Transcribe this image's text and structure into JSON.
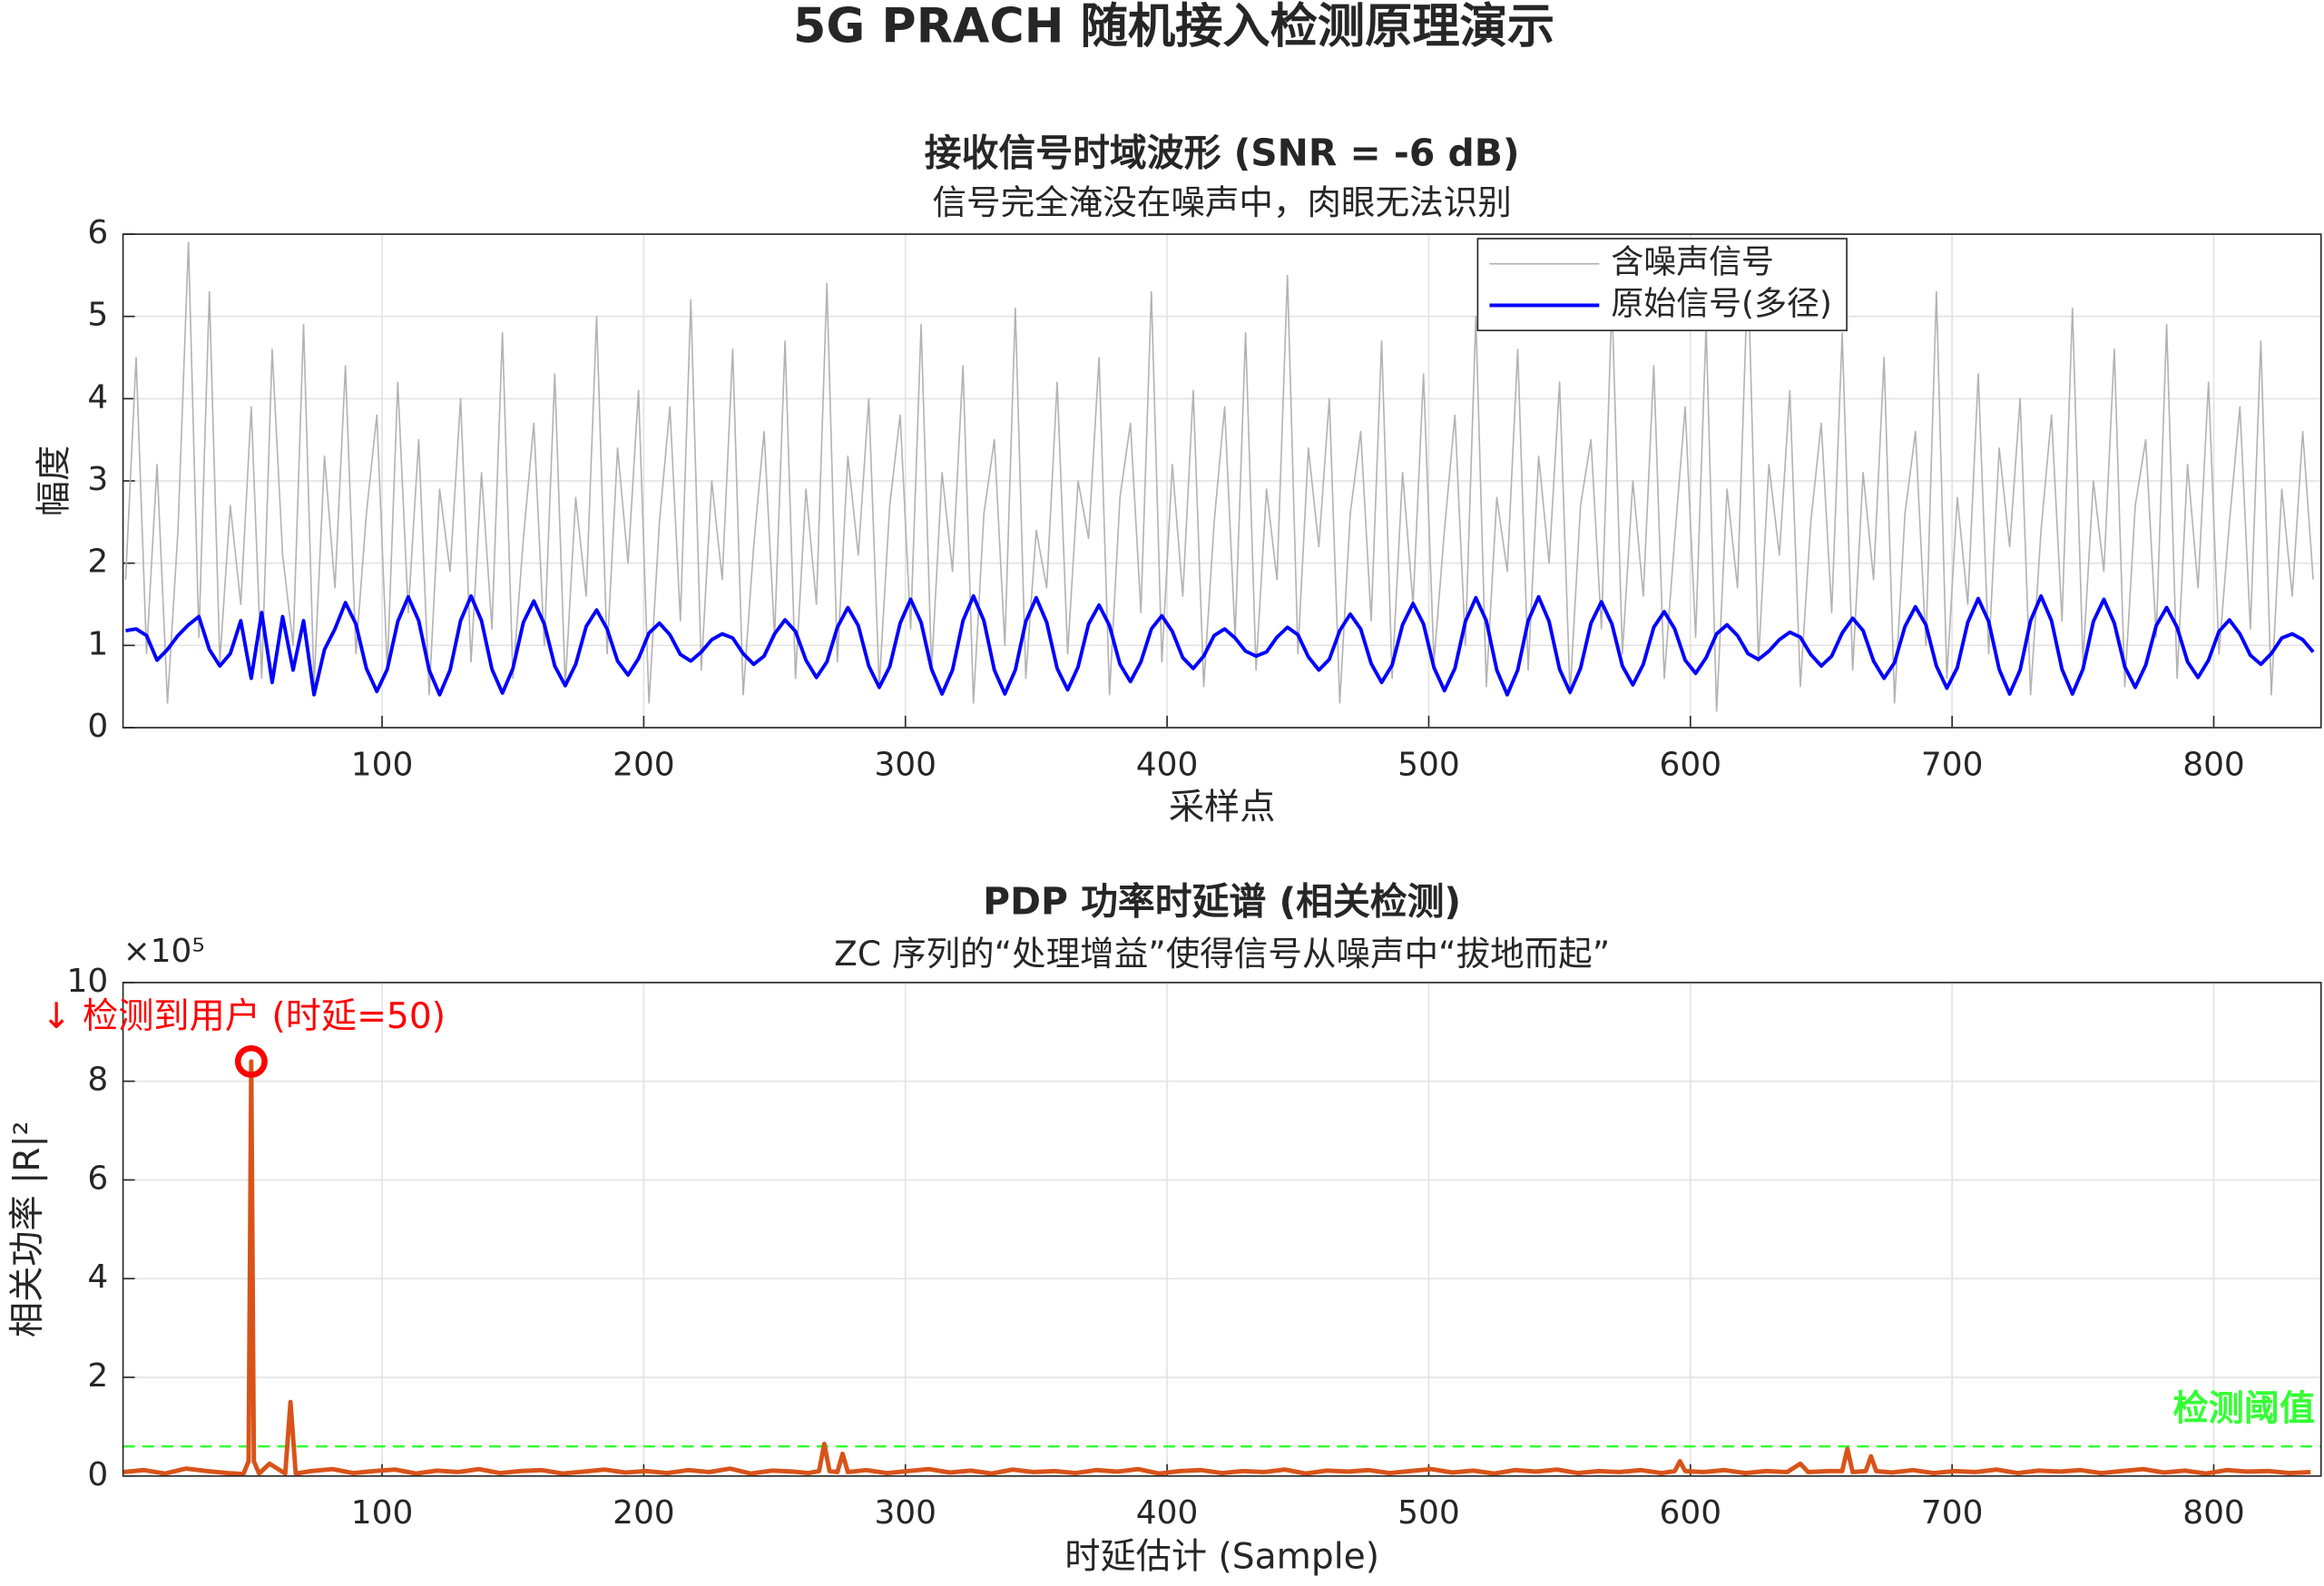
{
  "title": "5G PRACH 随机接入检测原理演示",
  "chart_data": [
    {
      "type": "line",
      "title": "接收信号时域波形 (SNR = -6 dB)",
      "subtitle": "信号完全淹没在噪声中，肉眼无法识别",
      "xlabel": "采样点",
      "ylabel": "幅度",
      "x": [
        2,
        6,
        10,
        14,
        18,
        22,
        26,
        30,
        34,
        38,
        42,
        46,
        50,
        54,
        58,
        62,
        66,
        70,
        74,
        78,
        82,
        86,
        90,
        94,
        98,
        102,
        106,
        110,
        114,
        118,
        122,
        126,
        130,
        134,
        138,
        142,
        146,
        150,
        154,
        158,
        162,
        166,
        170,
        174,
        178,
        182,
        186,
        190,
        194,
        198,
        202,
        206,
        210,
        214,
        218,
        222,
        226,
        230,
        234,
        238,
        242,
        246,
        250,
        254,
        258,
        262,
        266,
        270,
        274,
        278,
        282,
        286,
        290,
        294,
        298,
        302,
        306,
        310,
        314,
        318,
        322,
        326,
        330,
        334,
        338,
        342,
        346,
        350,
        354,
        358,
        362,
        366,
        370,
        374,
        378,
        382,
        386,
        390,
        394,
        398,
        402,
        406,
        410,
        414,
        418,
        422,
        426,
        430,
        434,
        438,
        442,
        446,
        450,
        454,
        458,
        462,
        466,
        470,
        474,
        478,
        482,
        486,
        490,
        494,
        498,
        502,
        506,
        510,
        514,
        518,
        522,
        526,
        530,
        534,
        538,
        542,
        546,
        550,
        554,
        558,
        562,
        566,
        570,
        574,
        578,
        582,
        586,
        590,
        594,
        598,
        602,
        606,
        610,
        614,
        618,
        622,
        626,
        630,
        634,
        638,
        642,
        646,
        650,
        654,
        658,
        662,
        666,
        670,
        674,
        678,
        682,
        686,
        690,
        694,
        698,
        702,
        706,
        710,
        714,
        718,
        722,
        726,
        730,
        734,
        738,
        742,
        746,
        750,
        754,
        758,
        762,
        766,
        770,
        774,
        778,
        782,
        786,
        790,
        794,
        798,
        802,
        806,
        810,
        814,
        818,
        822,
        826,
        830,
        834,
        838
      ],
      "series": [
        {
          "name": "含噪声信号",
          "color": "#b3b3b3",
          "width": 1,
          "values": [
            1.8,
            4.5,
            0.9,
            3.2,
            0.3,
            2.4,
            5.9,
            1.1,
            5.3,
            0.8,
            2.7,
            1.5,
            3.9,
            0.6,
            4.6,
            2.1,
            1.0,
            4.9,
            0.5,
            3.3,
            1.7,
            4.4,
            0.9,
            2.6,
            3.8,
            0.7,
            4.2,
            1.4,
            3.5,
            0.4,
            2.9,
            1.9,
            4.0,
            0.8,
            3.1,
            1.2,
            4.8,
            0.6,
            2.3,
            3.7,
            1.0,
            4.3,
            0.5,
            2.8,
            1.6,
            5.0,
            0.9,
            3.4,
            2.0,
            4.1,
            0.3,
            2.5,
            3.9,
            1.3,
            5.2,
            0.7,
            3.0,
            1.8,
            4.6,
            0.4,
            2.2,
            3.6,
            1.1,
            4.7,
            0.6,
            2.9,
            1.5,
            5.4,
            0.8,
            3.3,
            2.1,
            4.0,
            0.5,
            2.7,
            3.8,
            1.2,
            4.9,
            0.7,
            3.1,
            1.9,
            4.4,
            0.3,
            2.6,
            3.5,
            1.0,
            5.1,
            0.6,
            2.4,
            1.7,
            4.2,
            0.9,
            3.0,
            2.3,
            4.5,
            0.4,
            2.8,
            3.7,
            1.4,
            5.3,
            0.8,
            3.2,
            1.6,
            4.1,
            0.5,
            2.5,
            3.9,
            1.1,
            4.8,
            0.7,
            2.9,
            1.8,
            5.5,
            0.9,
            3.4,
            2.2,
            4.0,
            0.3,
            2.6,
            3.6,
            1.3,
            4.7,
            0.6,
            3.1,
            1.5,
            4.3,
            0.8,
            2.4,
            3.8,
            1.0,
            5.0,
            0.5,
            2.8,
            1.9,
            4.6,
            0.7,
            3.3,
            2.0,
            4.2,
            0.4,
            2.7,
            3.5,
            1.2,
            5.2,
            0.9,
            3.0,
            1.6,
            4.4,
            0.6,
            2.3,
            3.9,
            1.1,
            4.9,
            0.2,
            2.9,
            1.7,
            5.6,
            0.8,
            3.2,
            2.1,
            4.1,
            0.5,
            2.5,
            3.7,
            1.4,
            4.8,
            0.7,
            3.1,
            1.8,
            4.5,
            0.3,
            2.6,
            3.6,
            1.0,
            5.3,
            0.6,
            2.8,
            1.5,
            4.3,
            0.9,
            3.4,
            2.2,
            4.0,
            0.4,
            2.4,
            3.8,
            1.3,
            5.1,
            0.8,
            3.0,
            1.9,
            4.6,
            0.5,
            2.7,
            3.5,
            1.1,
            4.9,
            0.6,
            3.2,
            1.7,
            4.2,
            0.9,
            2.5,
            3.9,
            1.2,
            4.7,
            0.4,
            2.9,
            1.6,
            3.6,
            1.8
          ]
        },
        {
          "name": "原始信号(多径)",
          "color": "#0000ff",
          "width": 2.4,
          "values": [
            1.18,
            1.2,
            1.12,
            0.82,
            0.95,
            1.12,
            1.25,
            1.35,
            0.95,
            0.75,
            0.9,
            1.3,
            0.6,
            1.4,
            0.55,
            1.35,
            0.7,
            1.3,
            0.4,
            0.95,
            1.2,
            1.52,
            1.26,
            0.72,
            0.44,
            0.71,
            1.29,
            1.59,
            1.3,
            0.7,
            0.4,
            0.7,
            1.3,
            1.6,
            1.3,
            0.71,
            0.42,
            0.72,
            1.28,
            1.54,
            1.26,
            0.75,
            0.51,
            0.77,
            1.23,
            1.43,
            1.2,
            0.81,
            0.64,
            0.84,
            1.15,
            1.27,
            1.13,
            0.89,
            0.81,
            0.92,
            1.07,
            1.14,
            1.09,
            0.9,
            0.77,
            0.87,
            1.14,
            1.31,
            1.17,
            0.82,
            0.61,
            0.8,
            1.22,
            1.46,
            1.24,
            0.75,
            0.49,
            0.74,
            1.27,
            1.56,
            1.28,
            0.71,
            0.41,
            0.7,
            1.3,
            1.6,
            1.3,
            0.7,
            0.41,
            0.7,
            1.29,
            1.58,
            1.28,
            0.72,
            0.46,
            0.74,
            1.26,
            1.49,
            1.24,
            0.77,
            0.56,
            0.8,
            1.2,
            1.36,
            1.17,
            0.85,
            0.72,
            0.87,
            1.12,
            1.2,
            1.09,
            0.93,
            0.87,
            0.92,
            1.1,
            1.22,
            1.13,
            0.86,
            0.7,
            0.83,
            1.18,
            1.38,
            1.2,
            0.78,
            0.55,
            0.76,
            1.25,
            1.51,
            1.26,
            0.73,
            0.45,
            0.72,
            1.29,
            1.58,
            1.3,
            0.7,
            0.4,
            0.7,
            1.3,
            1.59,
            1.29,
            0.71,
            0.43,
            0.72,
            1.27,
            1.53,
            1.26,
            0.75,
            0.52,
            0.77,
            1.22,
            1.41,
            1.2,
            0.82,
            0.66,
            0.85,
            1.14,
            1.25,
            1.12,
            0.9,
            0.83,
            0.93,
            1.07,
            1.16,
            1.1,
            0.89,
            0.75,
            0.87,
            1.15,
            1.33,
            1.18,
            0.81,
            0.6,
            0.79,
            1.23,
            1.47,
            1.25,
            0.75,
            0.48,
            0.73,
            1.28,
            1.57,
            1.29,
            0.71,
            0.41,
            0.7,
            1.3,
            1.6,
            1.3,
            0.71,
            0.41,
            0.71,
            1.29,
            1.56,
            1.27,
            0.74,
            0.49,
            0.76,
            1.24,
            1.46,
            1.22,
            0.8,
            0.61,
            0.82,
            1.17,
            1.31,
            1.14,
            0.88,
            0.77,
            0.9,
            1.09,
            1.14,
            1.07,
            0.92
          ]
        }
      ],
      "xlim": [
        1,
        841
      ],
      "ylim": [
        0,
        6
      ],
      "xticks": [
        100,
        200,
        300,
        400,
        500,
        600,
        700,
        800
      ],
      "yticks": [
        0,
        1,
        2,
        3,
        4,
        5,
        6
      ],
      "grid": true,
      "legend": "upper right"
    },
    {
      "type": "line",
      "title": "PDP 功率时延谱 (相关检测)",
      "subtitle": "ZC 序列的“处理增益”使得信号从噪声中“拔地而起”",
      "xlabel": "时延估计 (Sample)",
      "ylabel": "相关功率  |R|²",
      "ylabel_exponent": "×10⁵",
      "x": [
        1,
        9,
        17,
        25,
        33,
        41,
        47,
        49,
        50,
        51,
        53,
        57,
        63,
        65,
        67,
        73,
        81,
        89,
        97,
        105,
        113,
        121,
        129,
        137,
        145,
        153,
        161,
        169,
        177,
        185,
        193,
        201,
        209,
        217,
        225,
        233,
        241,
        249,
        257,
        263,
        267,
        269,
        271,
        274,
        276,
        278,
        285,
        293,
        301,
        309,
        317,
        325,
        333,
        341,
        349,
        357,
        365,
        373,
        381,
        389,
        397,
        405,
        413,
        421,
        429,
        437,
        445,
        453,
        461,
        469,
        477,
        485,
        493,
        501,
        509,
        517,
        525,
        533,
        541,
        549,
        557,
        565,
        573,
        581,
        589,
        594,
        596,
        598,
        605,
        613,
        621,
        629,
        637,
        642,
        645,
        653,
        658,
        660,
        662,
        667,
        669,
        671,
        677,
        685,
        693,
        701,
        709,
        717,
        725,
        733,
        741,
        749,
        757,
        765,
        773,
        781,
        789,
        797,
        805,
        813,
        821,
        829,
        837
      ],
      "series": [
        {
          "color": "#d95319",
          "width": 3,
          "values": [
            0.08,
            0.12,
            0.05,
            0.15,
            0.1,
            0.06,
            0.04,
            0.3,
            8.4,
            0.3,
            0.05,
            0.25,
            0.05,
            1.5,
            0.05,
            0.1,
            0.14,
            0.06,
            0.1,
            0.13,
            0.05,
            0.11,
            0.08,
            0.14,
            0.06,
            0.1,
            0.12,
            0.05,
            0.09,
            0.13,
            0.07,
            0.1,
            0.06,
            0.12,
            0.08,
            0.15,
            0.05,
            0.11,
            0.09,
            0.06,
            0.1,
            0.65,
            0.1,
            0.08,
            0.45,
            0.08,
            0.12,
            0.06,
            0.1,
            0.14,
            0.07,
            0.11,
            0.05,
            0.13,
            0.08,
            0.1,
            0.06,
            0.12,
            0.09,
            0.14,
            0.05,
            0.1,
            0.12,
            0.06,
            0.1,
            0.08,
            0.13,
            0.05,
            0.11,
            0.09,
            0.12,
            0.06,
            0.1,
            0.14,
            0.07,
            0.11,
            0.05,
            0.12,
            0.09,
            0.13,
            0.06,
            0.1,
            0.08,
            0.12,
            0.06,
            0.1,
            0.3,
            0.1,
            0.08,
            0.12,
            0.06,
            0.1,
            0.08,
            0.25,
            0.08,
            0.1,
            0.1,
            0.55,
            0.08,
            0.1,
            0.4,
            0.1,
            0.07,
            0.12,
            0.06,
            0.1,
            0.08,
            0.13,
            0.06,
            0.11,
            0.09,
            0.12,
            0.06,
            0.1,
            0.14,
            0.07,
            0.11,
            0.05,
            0.12,
            0.09,
            0.1,
            0.06,
            0.08
          ]
        }
      ],
      "threshold": {
        "value": 0.6,
        "label": "检测阈值",
        "color": "#33ff33"
      },
      "marker": {
        "x": 50,
        "y": 8.4,
        "color": "#ff0000"
      },
      "annotation": {
        "text": "↓ 检测到用户  (时延=50)",
        "color": "#ff0000"
      },
      "xlim": [
        1,
        841
      ],
      "ylim": [
        0,
        10
      ],
      "xticks": [
        100,
        200,
        300,
        400,
        500,
        600,
        700,
        800
      ],
      "yticks": [
        0,
        2,
        4,
        6,
        8,
        10
      ],
      "grid": true
    }
  ]
}
